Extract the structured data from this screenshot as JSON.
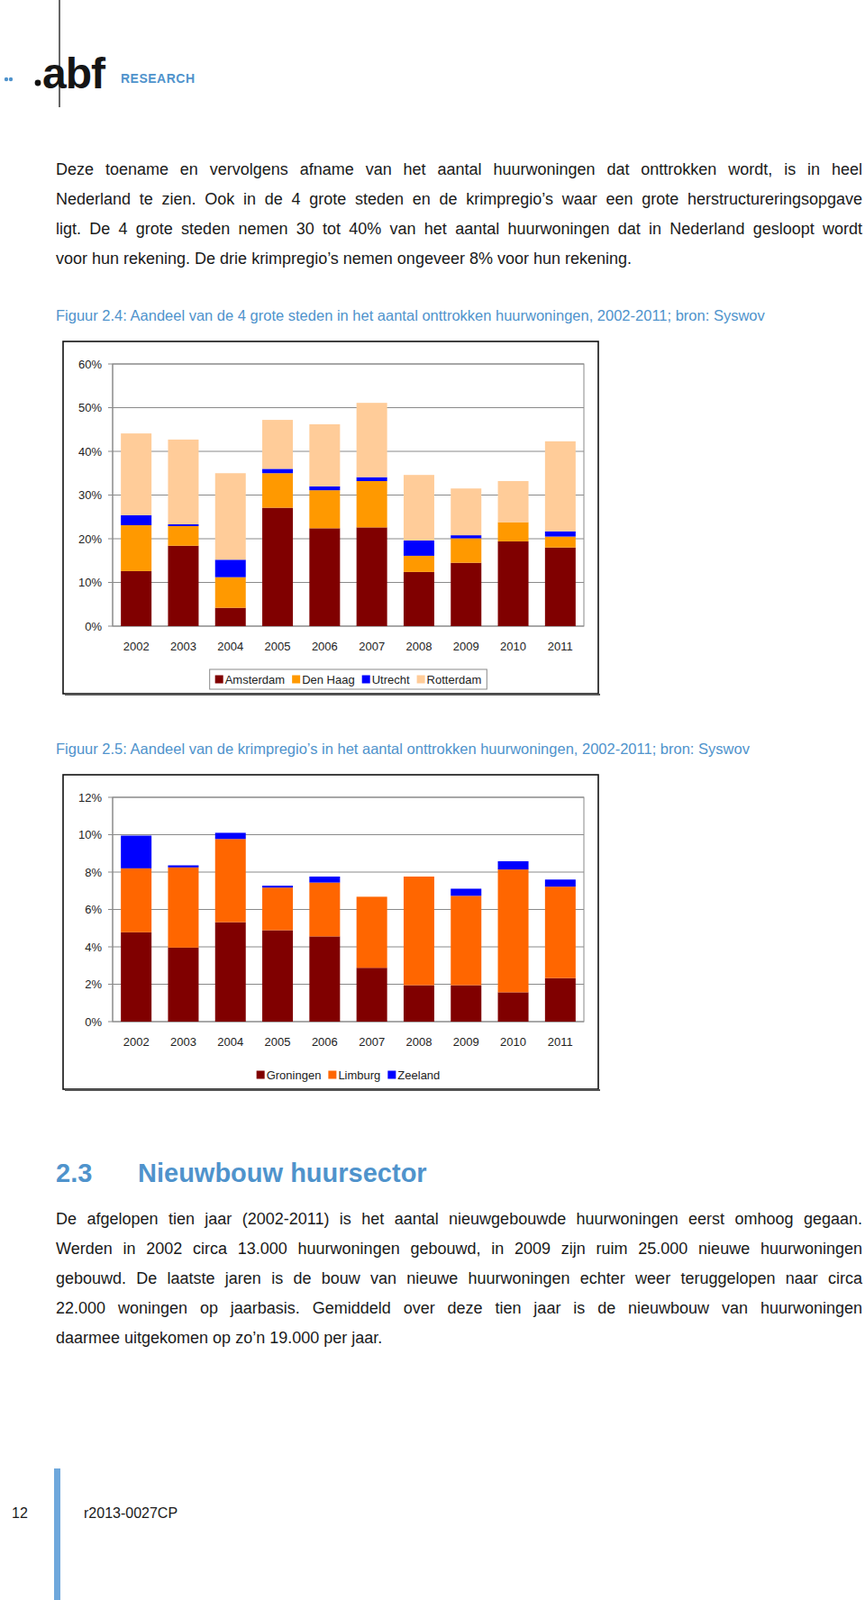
{
  "header": {
    "logo": "abf",
    "logo_sub": "RESEARCH"
  },
  "intro": {
    "lines": [
      "Deze toename en vervolgens afname van het aantal huurwoningen dat onttrokken wordt, is in heel",
      "Nederland te zien. Ook in de 4 grote steden en de krimpregio’s waar een grote herstructureringsopgave",
      "ligt. De 4 grote steden nemen 30 tot 40% van het aantal huurwoningen dat in Nederland gesloopt wordt",
      "voor hun rekening. De drie krimpregio’s nemen ongeveer 8% voor hun rekening."
    ]
  },
  "chart_data": [
    {
      "type": "bar",
      "stacked": true,
      "grid": true,
      "legend": "bottom",
      "title": "Figuur 2.4: Aandeel van de 4 grote steden in het aantal onttrokken huurwoningen, 2002-2011; bron: Syswov",
      "categories": [
        "2002",
        "2003",
        "2004",
        "2005",
        "2006",
        "2007",
        "2008",
        "2009",
        "2010",
        "2011"
      ],
      "series": [
        {
          "name": "Amsterdam",
          "color": "#800000",
          "values": [
            12.6,
            18.4,
            4.2,
            27.1,
            22.4,
            22.6,
            12.4,
            14.5,
            19.4,
            18.0
          ]
        },
        {
          "name": "Den Haag",
          "color": "#ff9900",
          "values": [
            10.5,
            4.5,
            7.0,
            7.9,
            8.7,
            10.6,
            3.7,
            5.6,
            4.4,
            2.5
          ]
        },
        {
          "name": "Utrecht",
          "color": "#0000ff",
          "values": [
            2.3,
            0.4,
            4.0,
            1.0,
            0.9,
            0.9,
            3.5,
            0.7,
            0,
            1.2
          ]
        },
        {
          "name": "Rotterdam",
          "color": "#ffcc99",
          "values": [
            18.7,
            19.4,
            19.8,
            11.2,
            14.2,
            17.0,
            15.0,
            10.7,
            9.4,
            20.6
          ]
        }
      ],
      "ylim": [
        0,
        60
      ],
      "yticks": [
        {
          "value": 0,
          "label": "0%"
        },
        {
          "value": 10,
          "label": "10%"
        },
        {
          "value": 20,
          "label": "20%"
        },
        {
          "value": 30,
          "label": "30%"
        },
        {
          "value": 40,
          "label": "40%"
        },
        {
          "value": 50,
          "label": "50%"
        },
        {
          "value": 60,
          "label": "60%"
        }
      ]
    },
    {
      "type": "bar",
      "stacked": true,
      "grid": true,
      "legend": "bottom",
      "title": "Figuur 2.5: Aandeel van de krimpregio’s in het aantal onttrokken huurwoningen, 2002-2011; bron: Syswov",
      "categories": [
        "2002",
        "2003",
        "2004",
        "2005",
        "2006",
        "2007",
        "2008",
        "2009",
        "2010",
        "2011"
      ],
      "series": [
        {
          "name": "Groningen",
          "color": "#800000",
          "values": [
            4.78,
            3.96,
            5.32,
            4.89,
            4.56,
            2.88,
            1.95,
            1.95,
            1.57,
            2.33
          ]
        },
        {
          "name": "Limburg",
          "color": "#ff6600",
          "values": [
            3.42,
            4.29,
            4.45,
            2.28,
            2.88,
            3.8,
            5.81,
            4.78,
            6.57,
            4.89
          ]
        },
        {
          "name": "Zeeland",
          "color": "#0000ff",
          "values": [
            1.75,
            0.11,
            0.33,
            0.1,
            0.32,
            0,
            0,
            0.38,
            0.44,
            0.38
          ]
        }
      ],
      "ylim": [
        0,
        12
      ],
      "yticks": [
        {
          "value": 0,
          "label": "0%"
        },
        {
          "value": 2,
          "label": "2%"
        },
        {
          "value": 4,
          "label": "4%"
        },
        {
          "value": 6,
          "label": "6%"
        },
        {
          "value": 8,
          "label": "8%"
        },
        {
          "value": 10,
          "label": "10%"
        },
        {
          "value": 12,
          "label": "12%"
        }
      ]
    }
  ],
  "section": {
    "number": "2.3",
    "title": "Nieuwbouw huursector"
  },
  "body": {
    "lines": [
      "De afgelopen tien jaar (2002-2011) is het aantal nieuwgebouwde huurwoningen eerst omhoog gegaan.",
      "Werden in 2002 circa 13.000 huurwoningen gebouwd, in 2009 zijn ruim 25.000 nieuwe huurwoningen",
      "gebouwd. De laatste jaren is de bouw van nieuwe huurwoningen echter weer teruggelopen naar circa",
      "22.000 woningen op jaarbasis. Gemiddeld over deze tien jaar is de nieuwbouw van huurwoningen",
      "daarmee uitgekomen op zo’n 19.000 per jaar."
    ]
  },
  "footer": {
    "page": "12",
    "code": "r2013-0027CP"
  }
}
